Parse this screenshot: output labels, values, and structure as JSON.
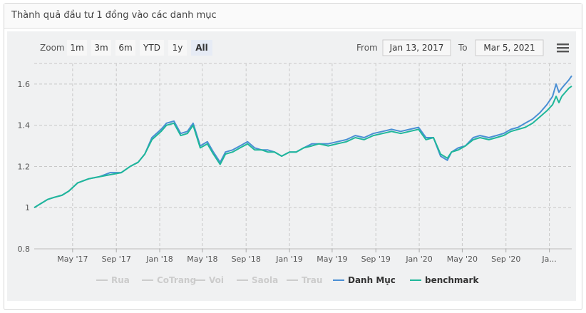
{
  "panel": {
    "title": "Thành quả đầu tư 1 đồng vào các danh mục"
  },
  "range_selector": {
    "zoom_label": "Zoom",
    "buttons": [
      "1m",
      "3m",
      "6m",
      "YTD",
      "1y",
      "All"
    ],
    "active": "All",
    "from_label": "From",
    "from_value": "Jan 13, 2017",
    "to_label": "To",
    "to_value": "Mar 5, 2021"
  },
  "menu_icon": "hamburger-menu-icon",
  "colors": {
    "danh_muc": "#4a8fd4",
    "benchmark": "#1fb79a",
    "hidden": "#cccccc",
    "grid": "#c8c8c8",
    "plot_bg": "#f0f1f2"
  },
  "chart_data": {
    "type": "line",
    "title": "",
    "xlabel": "",
    "ylabel": "",
    "ylim": [
      0.8,
      1.7
    ],
    "yticks": [
      "0.8",
      "1",
      "1.2",
      "1.4",
      "1.6"
    ],
    "x_range": [
      "2017-01-13",
      "2021-03-05"
    ],
    "xticks": [
      {
        "date": "2017-05-01",
        "label": "May '17"
      },
      {
        "date": "2017-09-01",
        "label": "Sep '17"
      },
      {
        "date": "2018-01-01",
        "label": "Jan '18"
      },
      {
        "date": "2018-05-01",
        "label": "May '18"
      },
      {
        "date": "2018-09-01",
        "label": "Sep '18"
      },
      {
        "date": "2019-01-01",
        "label": "Jan '19"
      },
      {
        "date": "2019-05-01",
        "label": "May '19"
      },
      {
        "date": "2019-09-01",
        "label": "Sep '19"
      },
      {
        "date": "2020-01-01",
        "label": "Jan '20"
      },
      {
        "date": "2020-05-01",
        "label": "May '20"
      },
      {
        "date": "2020-09-01",
        "label": "Sep '20"
      },
      {
        "date": "2021-01-01",
        "label": "Ja..."
      }
    ],
    "grid": true,
    "legend_position": "bottom-center",
    "legend": [
      {
        "name": "Rua",
        "visible": false
      },
      {
        "name": "CoTrang",
        "visible": false
      },
      {
        "name": "Voi",
        "visible": false
      },
      {
        "name": "Saola",
        "visible": false
      },
      {
        "name": "Trau",
        "visible": false
      },
      {
        "name": "Danh Mục",
        "visible": true
      },
      {
        "name": "benchmark",
        "visible": true
      }
    ],
    "series": [
      {
        "name": "Danh Mục",
        "x": [
          "2017-01-13",
          "2017-02-01",
          "2017-02-20",
          "2017-03-10",
          "2017-04-01",
          "2017-04-20",
          "2017-05-15",
          "2017-06-15",
          "2017-07-15",
          "2017-08-15",
          "2017-09-15",
          "2017-10-10",
          "2017-11-01",
          "2017-11-20",
          "2017-12-10",
          "2018-01-05",
          "2018-01-20",
          "2018-02-10",
          "2018-03-01",
          "2018-03-20",
          "2018-04-05",
          "2018-04-25",
          "2018-05-15",
          "2018-06-01",
          "2018-06-20",
          "2018-07-05",
          "2018-07-25",
          "2018-08-15",
          "2018-09-05",
          "2018-09-25",
          "2018-10-15",
          "2018-11-01",
          "2018-11-20",
          "2018-12-10",
          "2019-01-01",
          "2019-01-20",
          "2019-02-10",
          "2019-03-05",
          "2019-03-25",
          "2019-04-20",
          "2019-05-15",
          "2019-06-10",
          "2019-07-05",
          "2019-07-30",
          "2019-08-25",
          "2019-09-20",
          "2019-10-15",
          "2019-11-10",
          "2019-12-05",
          "2019-12-30",
          "2020-01-20",
          "2020-02-10",
          "2020-03-01",
          "2020-03-20",
          "2020-04-01",
          "2020-04-20",
          "2020-05-10",
          "2020-06-01",
          "2020-06-20",
          "2020-07-15",
          "2020-08-05",
          "2020-08-25",
          "2020-09-15",
          "2020-10-05",
          "2020-10-25",
          "2020-11-15",
          "2020-12-05",
          "2020-12-25",
          "2021-01-10",
          "2021-01-20",
          "2021-01-28",
          "2021-02-05",
          "2021-02-15",
          "2021-02-25",
          "2021-03-05"
        ],
        "values": [
          1.0,
          1.02,
          1.04,
          1.05,
          1.06,
          1.08,
          1.12,
          1.14,
          1.15,
          1.17,
          1.17,
          1.2,
          1.22,
          1.26,
          1.34,
          1.38,
          1.41,
          1.42,
          1.36,
          1.37,
          1.41,
          1.3,
          1.32,
          1.27,
          1.22,
          1.27,
          1.28,
          1.3,
          1.32,
          1.29,
          1.28,
          1.28,
          1.27,
          1.25,
          1.27,
          1.27,
          1.29,
          1.31,
          1.31,
          1.31,
          1.32,
          1.33,
          1.35,
          1.34,
          1.36,
          1.37,
          1.38,
          1.37,
          1.38,
          1.39,
          1.34,
          1.34,
          1.25,
          1.23,
          1.27,
          1.29,
          1.3,
          1.34,
          1.35,
          1.34,
          1.35,
          1.36,
          1.38,
          1.39,
          1.41,
          1.43,
          1.46,
          1.5,
          1.54,
          1.6,
          1.56,
          1.58,
          1.6,
          1.62,
          1.64
        ]
      },
      {
        "name": "benchmark",
        "x": [
          "2017-01-13",
          "2017-02-01",
          "2017-02-20",
          "2017-03-10",
          "2017-04-01",
          "2017-04-20",
          "2017-05-15",
          "2017-06-15",
          "2017-07-15",
          "2017-08-15",
          "2017-09-15",
          "2017-10-10",
          "2017-11-01",
          "2017-11-20",
          "2017-12-10",
          "2018-01-05",
          "2018-01-20",
          "2018-02-10",
          "2018-03-01",
          "2018-03-20",
          "2018-04-05",
          "2018-04-25",
          "2018-05-15",
          "2018-06-01",
          "2018-06-20",
          "2018-07-05",
          "2018-07-25",
          "2018-08-15",
          "2018-09-05",
          "2018-09-25",
          "2018-10-15",
          "2018-11-01",
          "2018-11-20",
          "2018-12-10",
          "2019-01-01",
          "2019-01-20",
          "2019-02-10",
          "2019-03-05",
          "2019-03-25",
          "2019-04-20",
          "2019-05-15",
          "2019-06-10",
          "2019-07-05",
          "2019-07-30",
          "2019-08-25",
          "2019-09-20",
          "2019-10-15",
          "2019-11-10",
          "2019-12-05",
          "2019-12-30",
          "2020-01-20",
          "2020-02-10",
          "2020-03-01",
          "2020-03-20",
          "2020-04-01",
          "2020-04-20",
          "2020-05-10",
          "2020-06-01",
          "2020-06-20",
          "2020-07-15",
          "2020-08-05",
          "2020-08-25",
          "2020-09-15",
          "2020-10-05",
          "2020-10-25",
          "2020-11-15",
          "2020-12-05",
          "2020-12-25",
          "2021-01-10",
          "2021-01-20",
          "2021-01-28",
          "2021-02-05",
          "2021-02-15",
          "2021-02-25",
          "2021-03-05"
        ],
        "values": [
          1.0,
          1.02,
          1.04,
          1.05,
          1.06,
          1.08,
          1.12,
          1.14,
          1.15,
          1.16,
          1.17,
          1.2,
          1.22,
          1.26,
          1.33,
          1.37,
          1.4,
          1.41,
          1.35,
          1.36,
          1.4,
          1.29,
          1.31,
          1.26,
          1.21,
          1.26,
          1.27,
          1.29,
          1.31,
          1.28,
          1.28,
          1.27,
          1.27,
          1.25,
          1.27,
          1.27,
          1.29,
          1.3,
          1.31,
          1.3,
          1.31,
          1.32,
          1.34,
          1.33,
          1.35,
          1.36,
          1.37,
          1.36,
          1.37,
          1.38,
          1.33,
          1.34,
          1.26,
          1.24,
          1.27,
          1.28,
          1.3,
          1.33,
          1.34,
          1.33,
          1.34,
          1.35,
          1.37,
          1.38,
          1.39,
          1.41,
          1.44,
          1.47,
          1.5,
          1.54,
          1.51,
          1.54,
          1.56,
          1.58,
          1.59
        ]
      }
    ]
  }
}
